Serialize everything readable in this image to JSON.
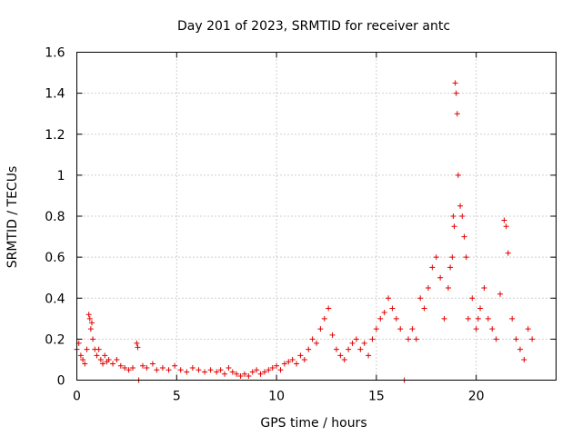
{
  "chart_data": {
    "type": "scatter",
    "marker": "plus",
    "color": "#e00000",
    "title": "Day 201 of 2023, SRMTID for receiver antc",
    "xlabel": "GPS time / hours",
    "ylabel": "SRMTID / TECUs",
    "xlim": [
      0,
      24
    ],
    "ylim": [
      0,
      1.6
    ],
    "xticks": [
      0,
      5,
      10,
      15,
      20
    ],
    "xtick_labels": [
      "0",
      "5",
      "10",
      "15",
      "20"
    ],
    "yticks": [
      0,
      0.2,
      0.4,
      0.6,
      0.8,
      1,
      1.2,
      1.4,
      1.6
    ],
    "ytick_labels": [
      "0",
      "0.2",
      "0.4",
      "0.6",
      "0.8",
      "1",
      "1.2",
      "1.4",
      "1.6"
    ],
    "grid": true,
    "series": [
      {
        "name": "SRMTID",
        "x": [
          0.0,
          0.1,
          0.2,
          0.3,
          0.4,
          0.5,
          0.6,
          0.65,
          0.7,
          0.75,
          0.8,
          0.9,
          1.0,
          1.1,
          1.2,
          1.3,
          1.4,
          1.5,
          1.6,
          1.8,
          2.0,
          2.2,
          2.4,
          2.6,
          2.8,
          3.0,
          3.05,
          3.1,
          3.3,
          3.5,
          3.8,
          4.0,
          4.3,
          4.6,
          4.9,
          5.2,
          5.5,
          5.8,
          6.1,
          6.4,
          6.7,
          7.0,
          7.2,
          7.4,
          7.6,
          7.8,
          8.0,
          8.2,
          8.4,
          8.6,
          8.8,
          9.0,
          9.2,
          9.4,
          9.6,
          9.8,
          10.0,
          10.2,
          10.4,
          10.6,
          10.8,
          11.0,
          11.2,
          11.4,
          11.6,
          11.8,
          12.0,
          12.2,
          12.4,
          12.6,
          12.8,
          13.0,
          13.2,
          13.4,
          13.6,
          13.8,
          14.0,
          14.2,
          14.4,
          14.6,
          14.8,
          15.0,
          15.2,
          15.4,
          15.6,
          15.8,
          16.0,
          16.2,
          16.4,
          16.6,
          16.8,
          17.0,
          17.2,
          17.4,
          17.6,
          17.8,
          18.0,
          18.2,
          18.4,
          18.6,
          18.7,
          18.8,
          18.85,
          18.9,
          18.95,
          19.0,
          19.05,
          19.1,
          19.2,
          19.3,
          19.4,
          19.5,
          19.6,
          19.8,
          20.0,
          20.1,
          20.2,
          20.4,
          20.6,
          20.8,
          21.0,
          21.2,
          21.4,
          21.5,
          21.6,
          21.8,
          22.0,
          22.2,
          22.4,
          22.6,
          22.8
        ],
        "y": [
          0.15,
          0.18,
          0.12,
          0.1,
          0.08,
          0.15,
          0.32,
          0.3,
          0.25,
          0.28,
          0.2,
          0.15,
          0.12,
          0.15,
          0.1,
          0.08,
          0.12,
          0.09,
          0.1,
          0.08,
          0.1,
          0.07,
          0.06,
          0.05,
          0.06,
          0.18,
          0.16,
          0.0,
          0.07,
          0.06,
          0.08,
          0.05,
          0.06,
          0.05,
          0.07,
          0.05,
          0.04,
          0.06,
          0.05,
          0.04,
          0.05,
          0.04,
          0.05,
          0.03,
          0.06,
          0.04,
          0.03,
          0.02,
          0.03,
          0.02,
          0.04,
          0.05,
          0.03,
          0.04,
          0.05,
          0.06,
          0.07,
          0.05,
          0.08,
          0.09,
          0.1,
          0.08,
          0.12,
          0.1,
          0.15,
          0.2,
          0.18,
          0.25,
          0.3,
          0.35,
          0.22,
          0.15,
          0.12,
          0.1,
          0.15,
          0.18,
          0.2,
          0.15,
          0.18,
          0.12,
          0.2,
          0.25,
          0.3,
          0.33,
          0.4,
          0.35,
          0.3,
          0.25,
          0.0,
          0.2,
          0.25,
          0.2,
          0.4,
          0.35,
          0.45,
          0.55,
          0.6,
          0.5,
          0.3,
          0.45,
          0.55,
          0.6,
          0.8,
          0.75,
          1.45,
          1.4,
          1.3,
          1.0,
          0.85,
          0.8,
          0.7,
          0.6,
          0.3,
          0.4,
          0.25,
          0.3,
          0.35,
          0.45,
          0.3,
          0.25,
          0.2,
          0.42,
          0.78,
          0.75,
          0.62,
          0.3,
          0.2,
          0.15,
          0.1,
          0.25,
          0.2
        ]
      }
    ]
  }
}
